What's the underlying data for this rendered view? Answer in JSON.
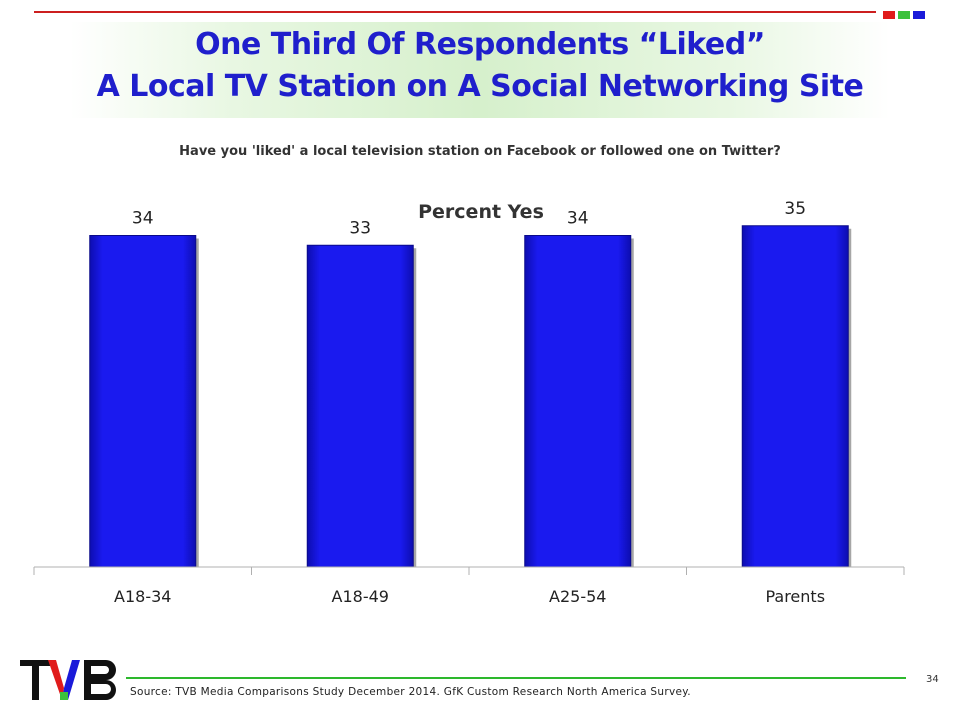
{
  "header": {
    "title_line1": "One Third Of Respondents “Liked”",
    "title_line2": "A Local TV Station on A Social Networking Site",
    "question": "Have you 'liked' a local television station on Facebook or followed one on Twitter?"
  },
  "accent_squares": [
    "#e01b1b",
    "#3cc13c",
    "#1a1ad9"
  ],
  "chart_data": {
    "type": "bar",
    "title": "Percent Yes",
    "categories": [
      "A18-34",
      "A18-49",
      "A25-54",
      "Parents"
    ],
    "values": [
      34,
      33,
      34,
      35
    ],
    "data_labels": [
      "34",
      "33",
      "34",
      "35"
    ],
    "ylim": [
      0,
      40
    ],
    "grid": false,
    "bar_color": "#1a1aef",
    "xlabel": "",
    "ylabel": ""
  },
  "footer": {
    "source": "Source: TVB Media Comparisons Study December 2014. GfK Custom Research North America Survey.",
    "page_number": "34",
    "logo_text": "TVB"
  }
}
